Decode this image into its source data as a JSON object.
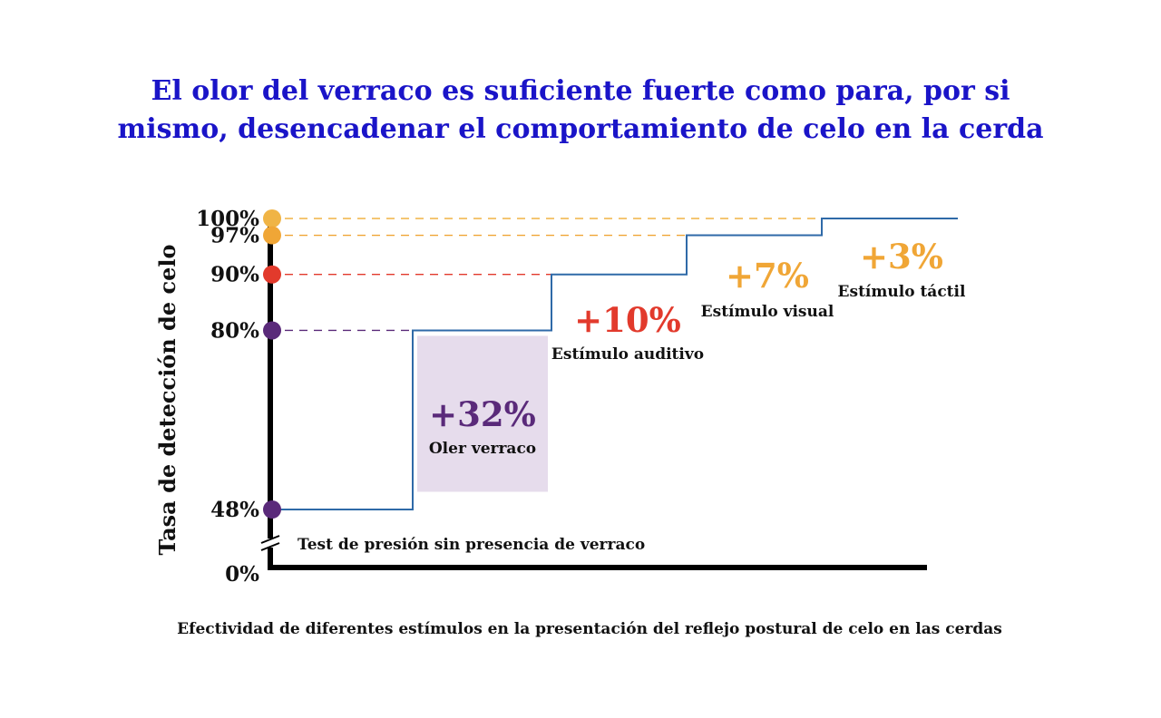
{
  "chart_data": {
    "type": "line",
    "title_lines": [
      "El olor del verraco es suficiente fuerte como para, por si",
      "mismo, desencadenar el comportamiento de celo en la cerda"
    ],
    "xlabel": "Efectividad de diferentes estímulos en la presentación del reflejo postural de celo en las cerdas",
    "ylabel": "Tasa de detección de celo",
    "yticks": [
      {
        "value": 100,
        "label": "100%",
        "color": "#f0b445"
      },
      {
        "value": 97,
        "label": "97%",
        "color": "#f0a636"
      },
      {
        "value": 90,
        "label": "90%",
        "color": "#e23a2c"
      },
      {
        "value": 80,
        "label": "80%",
        "color": "#5a2a7a"
      },
      {
        "value": 48,
        "label": "48%",
        "color": "#5a2a7a"
      },
      {
        "value": 0,
        "label": "0%",
        "color": ""
      }
    ],
    "axis_break": true,
    "baseline_label": "Test de presión sin presencia de verraco",
    "series": [
      {
        "values": [
          48,
          80,
          90,
          97,
          100
        ],
        "color": "#2f6aa8"
      }
    ],
    "steps": [
      {
        "gain": "+32%",
        "label": "Oler verraco",
        "color": "#5a2a7a",
        "highlight": "#e6dcec"
      },
      {
        "gain": "+10%",
        "label": "Estímulo auditivo",
        "color": "#e23a2c"
      },
      {
        "gain": "+7%",
        "label": "Estímulo visual",
        "color": "#f0a636"
      },
      {
        "gain": "+3%",
        "label": "Estímulo táctil",
        "color": "#f0a636"
      }
    ]
  }
}
